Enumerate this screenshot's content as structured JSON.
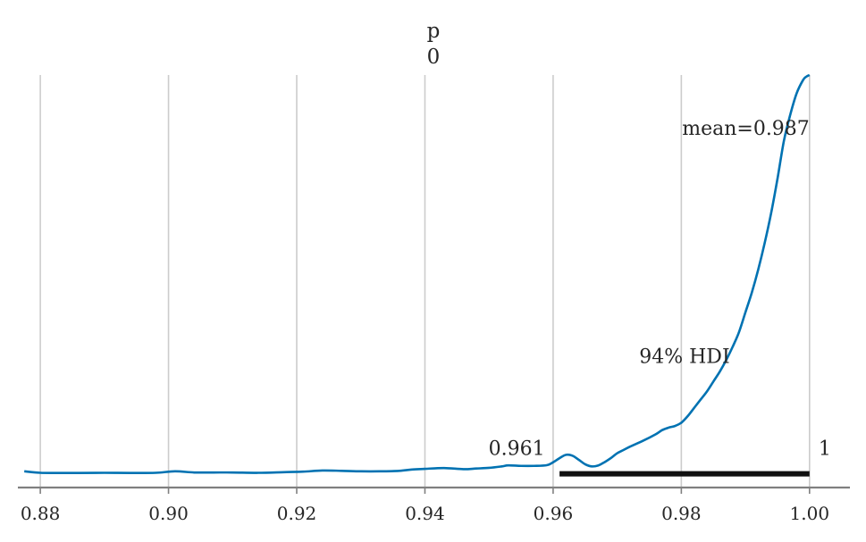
{
  "chart_data": {
    "type": "line",
    "title_lines": [
      "p",
      "0"
    ],
    "xlabel": "",
    "ylabel": "",
    "xlim": [
      0.8765,
      1.0063
    ],
    "ylim": [
      -0.4,
      24.2
    ],
    "x_ticks": [
      0.88,
      0.9,
      0.92,
      0.94,
      0.96,
      0.98,
      1.0
    ],
    "x_tick_labels": [
      "0.88",
      "0.90",
      "0.92",
      "0.94",
      "0.96",
      "0.98",
      "1.00"
    ],
    "grid": "vertical",
    "line_color": "#0072b2",
    "series": [
      {
        "x": [
          0.8775,
          0.88,
          0.883,
          0.886,
          0.89,
          0.894,
          0.898,
          0.901,
          0.904,
          0.907,
          0.91,
          0.914,
          0.918,
          0.921,
          0.924,
          0.927,
          0.93,
          0.933,
          0.936,
          0.938,
          0.94,
          0.943,
          0.946,
          0.948,
          0.95,
          0.952,
          0.953,
          0.955,
          0.957,
          0.959,
          0.96,
          0.961,
          0.962,
          0.963,
          0.964,
          0.965,
          0.966,
          0.967,
          0.968,
          0.969,
          0.97,
          0.971,
          0.972,
          0.974,
          0.976,
          0.977,
          0.978,
          0.979,
          0.98,
          0.981,
          0.982,
          0.983,
          0.984,
          0.985,
          0.986,
          0.987,
          0.988,
          0.989,
          0.99,
          0.991,
          0.992,
          0.993,
          0.994,
          0.995,
          0.996,
          0.997,
          0.998,
          0.999,
          0.9995,
          1.0
        ],
        "y": [
          0.15,
          0.06,
          0.05,
          0.05,
          0.06,
          0.05,
          0.06,
          0.15,
          0.08,
          0.08,
          0.08,
          0.06,
          0.1,
          0.13,
          0.2,
          0.18,
          0.15,
          0.15,
          0.18,
          0.26,
          0.3,
          0.35,
          0.28,
          0.32,
          0.36,
          0.45,
          0.51,
          0.48,
          0.48,
          0.52,
          0.7,
          0.95,
          1.15,
          1.1,
          0.85,
          0.58,
          0.45,
          0.5,
          0.7,
          0.95,
          1.25,
          1.45,
          1.65,
          2.0,
          2.4,
          2.65,
          2.8,
          2.9,
          3.1,
          3.5,
          4.0,
          4.5,
          5.0,
          5.6,
          6.2,
          6.9,
          7.7,
          8.6,
          9.8,
          11.0,
          12.4,
          14.0,
          15.8,
          17.9,
          20.2,
          21.8,
          23.1,
          23.9,
          24.1,
          24.2
        ]
      }
    ],
    "hdi": {
      "lower": 0.961,
      "upper": 1.0,
      "y": 0.0
    },
    "annotations": {
      "mean_label": "mean=0.987",
      "hdi_label": "94% HDI",
      "hdi_lower_label": "0.961",
      "hdi_upper_label": "1"
    }
  }
}
